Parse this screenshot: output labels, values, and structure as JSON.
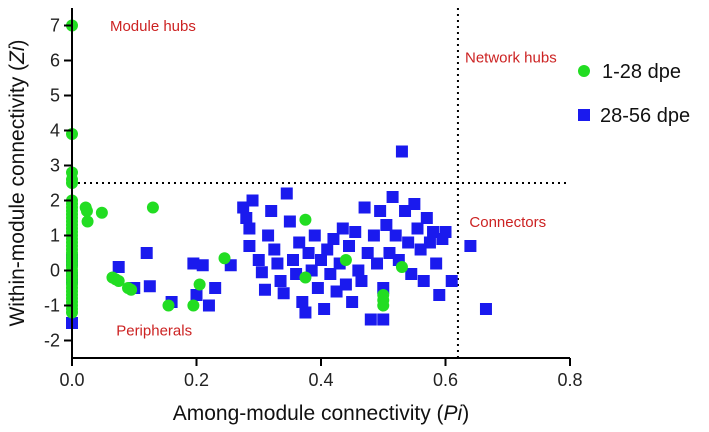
{
  "chart_data": {
    "type": "scatter",
    "title": "",
    "xlabel_prefix": "Among-module connectivity (",
    "xlabel_var": "Pi",
    "xlabel_suffix": ")",
    "ylabel_prefix": "Within-module connectivity (",
    "ylabel_var": "Zi",
    "ylabel_suffix": ")",
    "xlim": [
      0,
      0.8
    ],
    "ylim": [
      -2.5,
      7.5
    ],
    "x_ticks": [
      {
        "value": 0,
        "label": "0.0"
      },
      {
        "value": 0.2,
        "label": "0.2"
      },
      {
        "value": 0.4,
        "label": "0.4"
      },
      {
        "value": 0.6,
        "label": "0.6"
      },
      {
        "value": 0.8,
        "label": "0.8"
      }
    ],
    "y_ticks": [
      {
        "value": -2,
        "label": "-2"
      },
      {
        "value": -1,
        "label": "-1"
      },
      {
        "value": 0,
        "label": "0"
      },
      {
        "value": 1,
        "label": "1"
      },
      {
        "value": 2,
        "label": "2"
      },
      {
        "value": 3,
        "label": "3"
      },
      {
        "value": 4,
        "label": "4"
      },
      {
        "value": 5,
        "label": "5"
      },
      {
        "value": 6,
        "label": "6"
      },
      {
        "value": 7,
        "label": "7"
      }
    ],
    "threshold_lines": {
      "x": 0.62,
      "y": 2.5
    },
    "annotations": [
      {
        "text": "Module hubs",
        "x": 0.13,
        "y": 6.85,
        "color": "#cc2222"
      },
      {
        "text": "Network hubs",
        "x": 0.705,
        "y": 5.95,
        "color": "#cc2222"
      },
      {
        "text": "Connectors",
        "x": 0.7,
        "y": 1.25,
        "color": "#cc2222"
      },
      {
        "text": "Peripherals",
        "x": 0.132,
        "y": -1.85,
        "color": "#cc2222"
      }
    ],
    "legend_position": "right",
    "series": [
      {
        "name": "1-28 dpe",
        "color": "#22dd22",
        "marker": "circle",
        "points": [
          [
            0,
            7.0
          ],
          [
            0,
            3.9
          ],
          [
            0,
            2.8
          ],
          [
            0,
            2.6
          ],
          [
            0,
            2.5
          ],
          [
            0,
            2.0
          ],
          [
            0,
            1.9
          ],
          [
            0,
            1.8
          ],
          [
            0,
            1.7
          ],
          [
            0,
            1.6
          ],
          [
            0,
            1.5
          ],
          [
            0,
            1.4
          ],
          [
            0,
            1.3
          ],
          [
            0,
            1.2
          ],
          [
            0,
            1.1
          ],
          [
            0,
            1.0
          ],
          [
            0,
            0.9
          ],
          [
            0,
            0.8
          ],
          [
            0,
            0.7
          ],
          [
            0,
            0.6
          ],
          [
            0,
            0.5
          ],
          [
            0,
            0.4
          ],
          [
            0,
            0.3
          ],
          [
            0,
            0.2
          ],
          [
            0,
            0.1
          ],
          [
            0,
            0.0
          ],
          [
            0,
            -0.1
          ],
          [
            0,
            -0.2
          ],
          [
            0,
            -0.3
          ],
          [
            0,
            -0.4
          ],
          [
            0,
            -0.5
          ],
          [
            0,
            -0.6
          ],
          [
            0,
            -0.7
          ],
          [
            0,
            -0.8
          ],
          [
            0,
            -0.9
          ],
          [
            0,
            -1.0
          ],
          [
            0,
            -1.1
          ],
          [
            0,
            -1.2
          ],
          [
            0.022,
            1.8
          ],
          [
            0.024,
            1.7
          ],
          [
            0.025,
            1.4
          ],
          [
            0.048,
            1.65
          ],
          [
            0.065,
            -0.2
          ],
          [
            0.07,
            -0.25
          ],
          [
            0.075,
            -0.3
          ],
          [
            0.09,
            -0.5
          ],
          [
            0.095,
            -0.55
          ],
          [
            0.13,
            1.8
          ],
          [
            0.155,
            -1.0
          ],
          [
            0.195,
            -1.0
          ],
          [
            0.205,
            -0.4
          ],
          [
            0.245,
            0.35
          ],
          [
            0.375,
            1.45
          ],
          [
            0.375,
            -0.2
          ],
          [
            0.44,
            0.3
          ],
          [
            0.5,
            -0.7
          ],
          [
            0.5,
            -0.85
          ],
          [
            0.5,
            -1.0
          ],
          [
            0.53,
            0.1
          ]
        ]
      },
      {
        "name": "28-56 dpe",
        "color": "#1a1aee",
        "marker": "square",
        "points": [
          [
            0,
            -1.5
          ],
          [
            0,
            0.3
          ],
          [
            0,
            -0.2
          ],
          [
            0.075,
            0.1
          ],
          [
            0.1,
            -0.5
          ],
          [
            0.12,
            0.5
          ],
          [
            0.125,
            -0.45
          ],
          [
            0.16,
            -0.9
          ],
          [
            0.195,
            0.2
          ],
          [
            0.2,
            -0.7
          ],
          [
            0.21,
            0.15
          ],
          [
            0.22,
            -1.0
          ],
          [
            0.23,
            -0.5
          ],
          [
            0.255,
            0.15
          ],
          [
            0.275,
            1.8
          ],
          [
            0.28,
            1.5
          ],
          [
            0.285,
            1.2
          ],
          [
            0.285,
            0.7
          ],
          [
            0.29,
            2.0
          ],
          [
            0.3,
            0.3
          ],
          [
            0.305,
            -0.05
          ],
          [
            0.31,
            -0.55
          ],
          [
            0.315,
            1.0
          ],
          [
            0.32,
            1.7
          ],
          [
            0.325,
            0.6
          ],
          [
            0.33,
            0.2
          ],
          [
            0.335,
            -0.3
          ],
          [
            0.34,
            -0.65
          ],
          [
            0.345,
            2.2
          ],
          [
            0.35,
            1.4
          ],
          [
            0.355,
            0.3
          ],
          [
            0.36,
            -0.1
          ],
          [
            0.365,
            0.8
          ],
          [
            0.37,
            -0.9
          ],
          [
            0.375,
            -1.2
          ],
          [
            0.38,
            0.5
          ],
          [
            0.385,
            0.0
          ],
          [
            0.39,
            1.0
          ],
          [
            0.395,
            -0.5
          ],
          [
            0.4,
            0.3
          ],
          [
            0.405,
            -1.1
          ],
          [
            0.41,
            0.6
          ],
          [
            0.415,
            -0.1
          ],
          [
            0.42,
            0.9
          ],
          [
            0.425,
            -0.6
          ],
          [
            0.43,
            0.2
          ],
          [
            0.435,
            1.2
          ],
          [
            0.44,
            -0.4
          ],
          [
            0.445,
            0.7
          ],
          [
            0.45,
            -0.9
          ],
          [
            0.455,
            1.1
          ],
          [
            0.46,
            0.0
          ],
          [
            0.465,
            -0.3
          ],
          [
            0.47,
            1.8
          ],
          [
            0.475,
            0.5
          ],
          [
            0.48,
            -1.4
          ],
          [
            0.485,
            1.0
          ],
          [
            0.49,
            0.2
          ],
          [
            0.495,
            1.7
          ],
          [
            0.5,
            -0.5
          ],
          [
            0.5,
            -1.4
          ],
          [
            0.505,
            1.3
          ],
          [
            0.51,
            0.5
          ],
          [
            0.515,
            2.1
          ],
          [
            0.52,
            1.0
          ],
          [
            0.525,
            0.3
          ],
          [
            0.53,
            3.4
          ],
          [
            0.535,
            1.7
          ],
          [
            0.54,
            0.8
          ],
          [
            0.545,
            -0.1
          ],
          [
            0.55,
            1.9
          ],
          [
            0.555,
            1.2
          ],
          [
            0.56,
            0.6
          ],
          [
            0.565,
            -0.3
          ],
          [
            0.57,
            1.5
          ],
          [
            0.575,
            0.8
          ],
          [
            0.58,
            1.1
          ],
          [
            0.585,
            0.2
          ],
          [
            0.59,
            -0.7
          ],
          [
            0.595,
            0.9
          ],
          [
            0.6,
            1.1
          ],
          [
            0.61,
            -0.3
          ],
          [
            0.64,
            0.7
          ],
          [
            0.665,
            -1.1
          ]
        ]
      }
    ]
  }
}
